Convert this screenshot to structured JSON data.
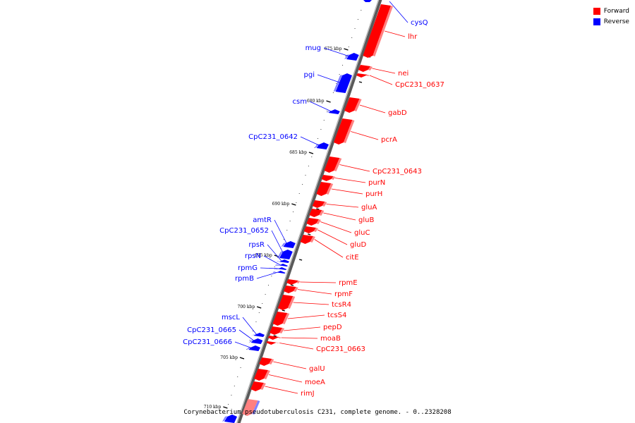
{
  "caption": "Corynebacterium pseudotuberculosis C231, complete genome. - 0..2328208",
  "legend": [
    {
      "label": "Forward",
      "color": "#ff0000"
    },
    {
      "label": "Reverse",
      "color": "#0000ff"
    }
  ],
  "colors": {
    "forward": "#ff0000",
    "reverse": "#0000ff",
    "backbone": "#7f7f7f"
  },
  "ticks": [
    "675 kbp",
    "680 kbp",
    "685 kbp",
    "690 kbp",
    "695 kbp",
    "700 kbp",
    "705 kbp",
    "710 kbp"
  ],
  "forward_genes": [
    {
      "name": "lhr"
    },
    {
      "name": "nei"
    },
    {
      "name": "CpC231_0637"
    },
    {
      "name": "gabD"
    },
    {
      "name": "pcrA"
    },
    {
      "name": "CpC231_0643"
    },
    {
      "name": "purN"
    },
    {
      "name": "purH"
    },
    {
      "name": "gluA"
    },
    {
      "name": "gluB"
    },
    {
      "name": "gluC"
    },
    {
      "name": "gluD"
    },
    {
      "name": "citE"
    },
    {
      "name": "rpmE"
    },
    {
      "name": "rpmF"
    },
    {
      "name": "tcsR4"
    },
    {
      "name": "tcsS4"
    },
    {
      "name": "pepD"
    },
    {
      "name": "moaB"
    },
    {
      "name": "CpC231_0663"
    },
    {
      "name": "galU"
    },
    {
      "name": "moeA"
    },
    {
      "name": "rimJ"
    }
  ],
  "reverse_genes": [
    {
      "name": "cysQ"
    },
    {
      "name": "mug"
    },
    {
      "name": "pgi"
    },
    {
      "name": "csm"
    },
    {
      "name": "CpC231_0642"
    },
    {
      "name": "amtR"
    },
    {
      "name": "CpC231_0652"
    },
    {
      "name": "rpsR"
    },
    {
      "name": "rpsN"
    },
    {
      "name": "rpmG"
    },
    {
      "name": "rpmB"
    },
    {
      "name": "mscL"
    },
    {
      "name": "CpC231_0665"
    },
    {
      "name": "CpC231_0666"
    }
  ]
}
